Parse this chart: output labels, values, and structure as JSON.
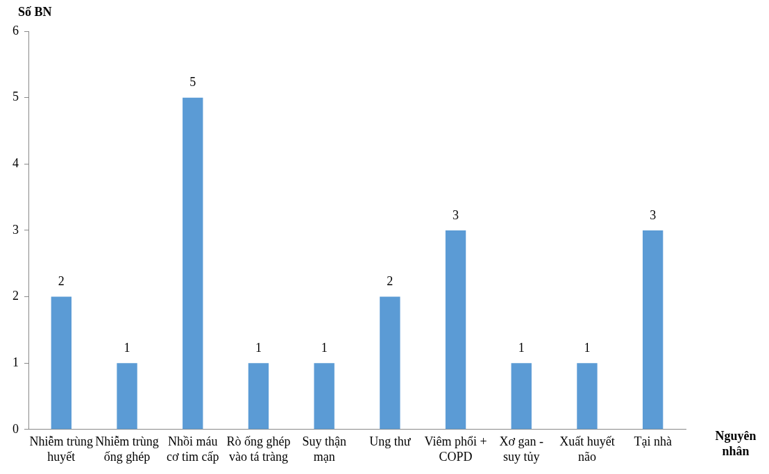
{
  "chart_data": {
    "type": "bar",
    "xlabel": "Nguyên nhân",
    "ylabel": "Số BN",
    "categories": [
      "Nhiễm trùng huyết",
      "Nhiễm trùng ống ghép",
      "Nhồi máu cơ tim cấp",
      "Rò ống ghép vào tá tràng",
      "Suy thận mạn",
      "Ung thư",
      "Viêm phổi + COPD",
      "Xơ gan - suy tủy",
      "Xuất huyết não",
      "Tại nhà"
    ],
    "values": [
      2,
      1,
      5,
      1,
      1,
      2,
      3,
      1,
      1,
      3
    ],
    "color": "#5b9bd5",
    "ylim": [
      0,
      6
    ],
    "yticks": [
      0,
      1,
      2,
      3,
      4,
      5,
      6
    ],
    "grid": false,
    "legend": false,
    "data_labels": true
  }
}
